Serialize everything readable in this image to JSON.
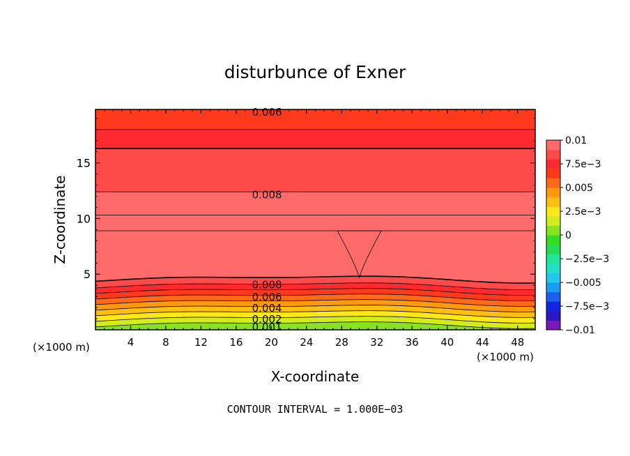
{
  "chart_data": {
    "type": "heatmap",
    "title": "disturbunce of Exner",
    "xlabel": "X-coordinate",
    "ylabel": "Z-coordinate",
    "x_unit": "(×1000 m)",
    "y_unit": "(×1000 m)",
    "xlim": [
      0,
      50
    ],
    "ylim": [
      0,
      19.8
    ],
    "x_ticks": [
      "4",
      "8",
      "12",
      "16",
      "20",
      "24",
      "28",
      "32",
      "36",
      "40",
      "44",
      "48"
    ],
    "y_ticks": [
      "5",
      "10",
      "15"
    ],
    "x_tick_values": [
      4,
      8,
      12,
      16,
      20,
      24,
      28,
      32,
      36,
      40,
      44,
      48
    ],
    "y_tick_values": [
      5,
      10,
      15
    ],
    "colorbar": {
      "min": -0.01,
      "max": 0.01,
      "labels": [
        "0.01",
        "7.5e−3",
        "0.005",
        "2.5e−3",
        "0",
        "−2.5e−3",
        "−0.005",
        "−7.5e−3",
        "−0.01"
      ],
      "label_values": [
        0.01,
        0.0075,
        0.005,
        0.0025,
        0,
        -0.0025,
        -0.005,
        -0.0075,
        -0.01
      ],
      "colors": [
        "#7a19b8",
        "#2a17c4",
        "#1226e2",
        "#1a5ef0",
        "#1d9af4",
        "#22c8ea",
        "#22e0c8",
        "#22e59a",
        "#22dd55",
        "#33dd22",
        "#88e222",
        "#d2ec1c",
        "#ffe81a",
        "#ffbf12",
        "#ff9a10",
        "#ff6a18",
        "#ff3a1c",
        "#ff2a30",
        "#ff4a4a",
        "#ff6b6b"
      ]
    },
    "contour_labels": [
      "0.006",
      "0.008",
      "0.008",
      "0.006",
      "0.004",
      "0.002",
      "0.001"
    ],
    "contour_label_values": [
      0.006,
      0.008,
      0.008,
      0.006,
      0.004,
      0.002,
      0.001
    ],
    "contour_interval_text": "CONTOUR INTERVAL = 1.000E−03",
    "field_layers": [
      {
        "value": 0.0065,
        "z_bottom": 18.0,
        "z_top": 19.8
      },
      {
        "value": 0.0075,
        "z_bottom": 16.3,
        "z_top": 18.0
      },
      {
        "value": 0.0085,
        "z_bottom": 12.4,
        "z_top": 16.3
      },
      {
        "value": 0.009,
        "z_bottom": 10.3,
        "z_top": 12.4
      },
      {
        "value": 0.0095,
        "z_bottom": 8.9,
        "z_top": 10.3
      },
      {
        "value": 0.0098,
        "z_bottom": 4.6,
        "z_top": 8.9
      },
      {
        "value": 0.0088,
        "z_bottom": 4.0,
        "z_top": 4.6
      },
      {
        "value": 0.0078,
        "z_bottom": 3.5,
        "z_top": 4.0
      },
      {
        "value": 0.0068,
        "z_bottom": 3.0,
        "z_top": 3.5
      },
      {
        "value": 0.0058,
        "z_bottom": 2.5,
        "z_top": 3.0
      },
      {
        "value": 0.0048,
        "z_bottom": 2.0,
        "z_top": 2.5
      },
      {
        "value": 0.0038,
        "z_bottom": 1.5,
        "z_top": 2.0
      },
      {
        "value": 0.0028,
        "z_bottom": 1.0,
        "z_top": 1.5
      },
      {
        "value": 0.0018,
        "z_bottom": 0.5,
        "z_top": 1.0
      },
      {
        "value": 0.0008,
        "z_bottom": 0.0,
        "z_top": 0.5
      }
    ],
    "max_blobs": [
      {
        "value": 0.0101,
        "x_range": [
          0,
          23
        ],
        "z_range": [
          5.8,
          7.8
        ]
      },
      {
        "value": 0.0101,
        "x_range": [
          33,
          50
        ],
        "z_range": [
          5.8,
          7.8
        ]
      }
    ]
  }
}
